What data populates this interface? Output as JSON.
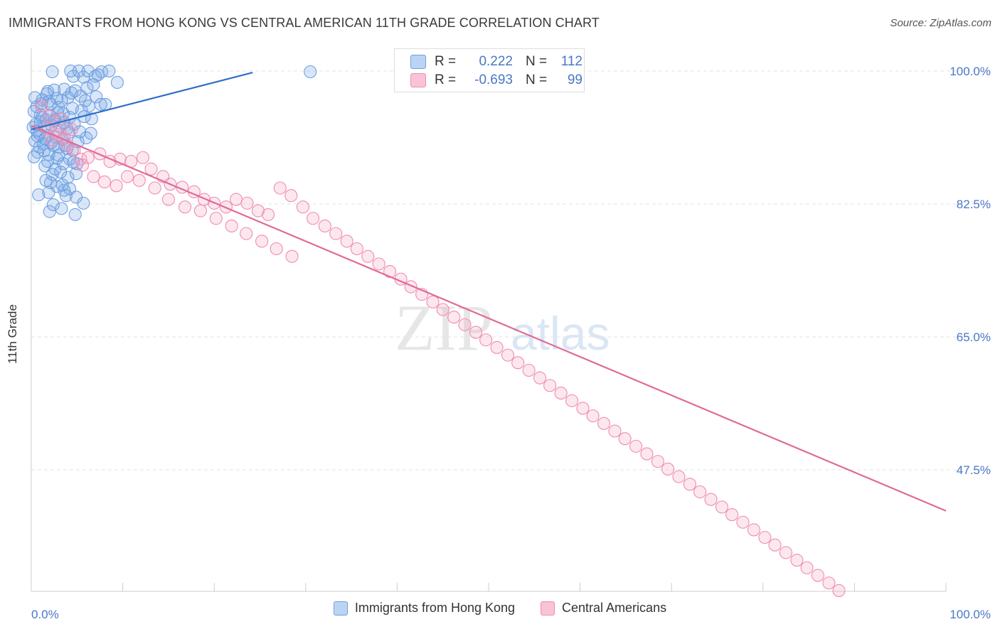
{
  "header": {
    "title": "IMMIGRANTS FROM HONG KONG VS CENTRAL AMERICAN 11TH GRADE CORRELATION CHART",
    "source": "Source: ZipAtlas.com"
  },
  "watermark": {
    "zip": "ZIP",
    "atlas": "atlas"
  },
  "stats": [
    {
      "r_label": "R =",
      "r_value": "0.222",
      "n_label": "N =",
      "n_value": "112",
      "color": "#6fa0e0"
    },
    {
      "r_label": "R =",
      "r_value": "-0.693",
      "n_label": "N =",
      "n_value": "99",
      "color": "#f08cb0"
    }
  ],
  "legend": [
    {
      "label": "Immigrants from Hong Kong",
      "color": "#6fa0e0"
    },
    {
      "label": "Central Americans",
      "color": "#f08cb0"
    }
  ],
  "chart_data": {
    "type": "scatter",
    "title": "IMMIGRANTS FROM HONG KONG VS CENTRAL AMERICAN 11TH GRADE CORRELATION CHART",
    "xlabel": "",
    "ylabel": "11th Grade",
    "xlim": [
      0,
      100
    ],
    "ylim": [
      31.5,
      102.8
    ],
    "x_tick_labels": [
      "0.0%",
      "100.0%"
    ],
    "y_ticks": [
      47.5,
      65.0,
      82.5,
      100.0
    ],
    "y_tick_labels": [
      "47.5%",
      "65.0%",
      "82.5%",
      "100.0%"
    ],
    "grid": true,
    "legend_position": "bottom",
    "series": [
      {
        "name": "Immigrants from Hong Kong",
        "color": "#6fa0e0",
        "trend": {
          "x": [
            0,
            24.2
          ],
          "y": [
            92.3,
            99.8
          ]
        },
        "points": [
          [
            2.3,
            99.9
          ],
          [
            4.3,
            100.0
          ],
          [
            4.6,
            99.3
          ],
          [
            5.2,
            100.0
          ],
          [
            5.7,
            99.2
          ],
          [
            6.2,
            100.0
          ],
          [
            7.0,
            99.3
          ],
          [
            7.7,
            99.9
          ],
          [
            8.5,
            100.0
          ],
          [
            9.4,
            98.5
          ],
          [
            30.5,
            99.9
          ],
          [
            1.8,
            97.3
          ],
          [
            2.5,
            97.5
          ],
          [
            3.6,
            97.6
          ],
          [
            4.8,
            97.4
          ],
          [
            6.1,
            97.8
          ],
          [
            4.0,
            96.5
          ],
          [
            7.1,
            96.6
          ],
          [
            7.6,
            95.6
          ],
          [
            8.1,
            95.6
          ],
          [
            0.6,
            95.3
          ],
          [
            1.2,
            96.2
          ],
          [
            1.9,
            96.0
          ],
          [
            3.0,
            95.2
          ],
          [
            4.5,
            95.1
          ],
          [
            5.5,
            94.8
          ],
          [
            3.5,
            94.4
          ],
          [
            1.0,
            94.2
          ],
          [
            1.6,
            93.6
          ],
          [
            2.5,
            93.4
          ],
          [
            4.2,
            93.9
          ],
          [
            5.8,
            94.0
          ],
          [
            6.6,
            93.7
          ],
          [
            0.5,
            93.0
          ],
          [
            1.4,
            92.6
          ],
          [
            2.2,
            92.9
          ],
          [
            3.1,
            92.7
          ],
          [
            3.9,
            92.4
          ],
          [
            4.7,
            93.0
          ],
          [
            5.3,
            92.0
          ],
          [
            0.9,
            91.7
          ],
          [
            1.8,
            91.5
          ],
          [
            2.7,
            91.3
          ],
          [
            3.4,
            91.0
          ],
          [
            4.1,
            91.9
          ],
          [
            6.5,
            91.8
          ],
          [
            0.4,
            90.8
          ],
          [
            1.3,
            90.4
          ],
          [
            2.2,
            90.6
          ],
          [
            3.0,
            90.0
          ],
          [
            3.7,
            90.2
          ],
          [
            4.5,
            89.6
          ],
          [
            0.7,
            89.3
          ],
          [
            1.9,
            89.0
          ],
          [
            2.8,
            88.5
          ],
          [
            3.5,
            87.8
          ],
          [
            4.2,
            88.4
          ],
          [
            5.0,
            87.8
          ],
          [
            1.5,
            87.5
          ],
          [
            2.3,
            86.4
          ],
          [
            3.2,
            86.7
          ],
          [
            4.0,
            86.0
          ],
          [
            4.9,
            86.5
          ],
          [
            1.6,
            85.6
          ],
          [
            2.8,
            84.8
          ],
          [
            3.6,
            84.3
          ],
          [
            0.8,
            83.7
          ],
          [
            1.9,
            84.0
          ],
          [
            3.8,
            83.6
          ],
          [
            4.9,
            83.4
          ],
          [
            2.4,
            82.4
          ],
          [
            3.3,
            81.9
          ],
          [
            5.7,
            82.6
          ],
          [
            2.0,
            81.5
          ],
          [
            4.8,
            81.1
          ],
          [
            0.3,
            94.7
          ],
          [
            1.1,
            95.7
          ],
          [
            2.0,
            94.2
          ],
          [
            2.9,
            94.5
          ],
          [
            3.6,
            93.2
          ],
          [
            0.6,
            92.1
          ],
          [
            1.5,
            91.1
          ],
          [
            2.6,
            93.6
          ],
          [
            0.2,
            92.6
          ],
          [
            1.0,
            93.3
          ],
          [
            2.1,
            95.6
          ],
          [
            3.3,
            96.1
          ],
          [
            4.4,
            97.1
          ],
          [
            5.4,
            96.7
          ],
          [
            6.3,
            95.4
          ],
          [
            0.4,
            96.5
          ],
          [
            1.7,
            97.0
          ],
          [
            2.8,
            96.4
          ],
          [
            5.9,
            96.1
          ],
          [
            6.8,
            98.2
          ],
          [
            7.3,
            99.5
          ],
          [
            0.9,
            90.0
          ],
          [
            1.4,
            89.5
          ],
          [
            3.0,
            88.9
          ],
          [
            4.6,
            88.0
          ],
          [
            2.1,
            85.3
          ],
          [
            3.4,
            85.0
          ],
          [
            4.2,
            84.5
          ],
          [
            1.2,
            93.9
          ],
          [
            0.7,
            91.4
          ],
          [
            2.4,
            90.2
          ],
          [
            3.9,
            89.8
          ],
          [
            5.1,
            90.7
          ],
          [
            6.0,
            91.2
          ],
          [
            0.3,
            88.7
          ],
          [
            1.8,
            88.1
          ],
          [
            2.6,
            87.1
          ]
        ]
      },
      {
        "name": "Central Americans",
        "color": "#f08cb0",
        "trend": {
          "x": [
            0,
            100
          ],
          "y": [
            92.8,
            42.1
          ]
        },
        "points": [
          [
            1.1,
            95.4
          ],
          [
            2.0,
            94.0
          ],
          [
            3.2,
            93.7
          ],
          [
            1.6,
            92.4
          ],
          [
            2.7,
            92.0
          ],
          [
            4.4,
            92.3
          ],
          [
            3.6,
            91.1
          ],
          [
            4.7,
            89.6
          ],
          [
            5.4,
            88.4
          ],
          [
            6.2,
            88.6
          ],
          [
            7.5,
            89.1
          ],
          [
            8.6,
            88.1
          ],
          [
            9.7,
            88.4
          ],
          [
            10.9,
            88.1
          ],
          [
            12.2,
            88.6
          ],
          [
            13.1,
            87.1
          ],
          [
            14.4,
            86.1
          ],
          [
            15.2,
            85.1
          ],
          [
            16.5,
            84.7
          ],
          [
            17.8,
            84.1
          ],
          [
            18.9,
            83.1
          ],
          [
            20.0,
            82.6
          ],
          [
            21.3,
            82.1
          ],
          [
            22.4,
            83.1
          ],
          [
            23.6,
            82.6
          ],
          [
            24.8,
            81.6
          ],
          [
            25.9,
            81.1
          ],
          [
            27.2,
            84.6
          ],
          [
            28.4,
            83.6
          ],
          [
            29.7,
            82.1
          ],
          [
            30.8,
            80.6
          ],
          [
            32.1,
            79.6
          ],
          [
            33.3,
            78.6
          ],
          [
            34.5,
            77.6
          ],
          [
            35.6,
            76.6
          ],
          [
            36.8,
            75.6
          ],
          [
            38.0,
            74.6
          ],
          [
            39.2,
            73.6
          ],
          [
            40.4,
            72.6
          ],
          [
            41.5,
            71.6
          ],
          [
            42.7,
            70.6
          ],
          [
            43.9,
            69.6
          ],
          [
            45.0,
            68.6
          ],
          [
            46.2,
            67.6
          ],
          [
            47.4,
            66.6
          ],
          [
            48.6,
            65.6
          ],
          [
            49.7,
            64.6
          ],
          [
            50.9,
            63.6
          ],
          [
            52.1,
            62.6
          ],
          [
            53.2,
            61.6
          ],
          [
            54.4,
            60.6
          ],
          [
            55.6,
            59.6
          ],
          [
            56.7,
            58.6
          ],
          [
            57.9,
            57.6
          ],
          [
            59.1,
            56.6
          ],
          [
            60.3,
            55.6
          ],
          [
            61.4,
            54.6
          ],
          [
            62.6,
            53.6
          ],
          [
            63.8,
            52.6
          ],
          [
            64.9,
            51.6
          ],
          [
            66.1,
            50.6
          ],
          [
            67.3,
            49.6
          ],
          [
            68.5,
            48.6
          ],
          [
            69.6,
            47.6
          ],
          [
            70.8,
            46.6
          ],
          [
            72.0,
            45.6
          ],
          [
            73.1,
            44.6
          ],
          [
            74.3,
            43.6
          ],
          [
            75.5,
            42.6
          ],
          [
            76.6,
            41.6
          ],
          [
            77.8,
            40.6
          ],
          [
            79.0,
            39.6
          ],
          [
            80.2,
            38.6
          ],
          [
            81.3,
            37.6
          ],
          [
            82.5,
            36.6
          ],
          [
            83.7,
            35.6
          ],
          [
            84.8,
            34.6
          ],
          [
            86.0,
            33.6
          ],
          [
            87.2,
            32.6
          ],
          [
            88.3,
            31.6
          ],
          [
            2.3,
            90.9
          ],
          [
            3.0,
            91.6
          ],
          [
            4.0,
            90.2
          ],
          [
            5.6,
            87.6
          ],
          [
            6.8,
            86.1
          ],
          [
            8.0,
            85.4
          ],
          [
            9.3,
            84.9
          ],
          [
            10.5,
            86.1
          ],
          [
            11.8,
            85.6
          ],
          [
            13.5,
            84.6
          ],
          [
            15.0,
            83.1
          ],
          [
            16.8,
            82.1
          ],
          [
            18.5,
            81.6
          ],
          [
            20.2,
            80.6
          ],
          [
            21.9,
            79.6
          ],
          [
            23.5,
            78.6
          ],
          [
            25.2,
            77.6
          ],
          [
            26.8,
            76.6
          ],
          [
            28.5,
            75.6
          ]
        ]
      }
    ]
  }
}
